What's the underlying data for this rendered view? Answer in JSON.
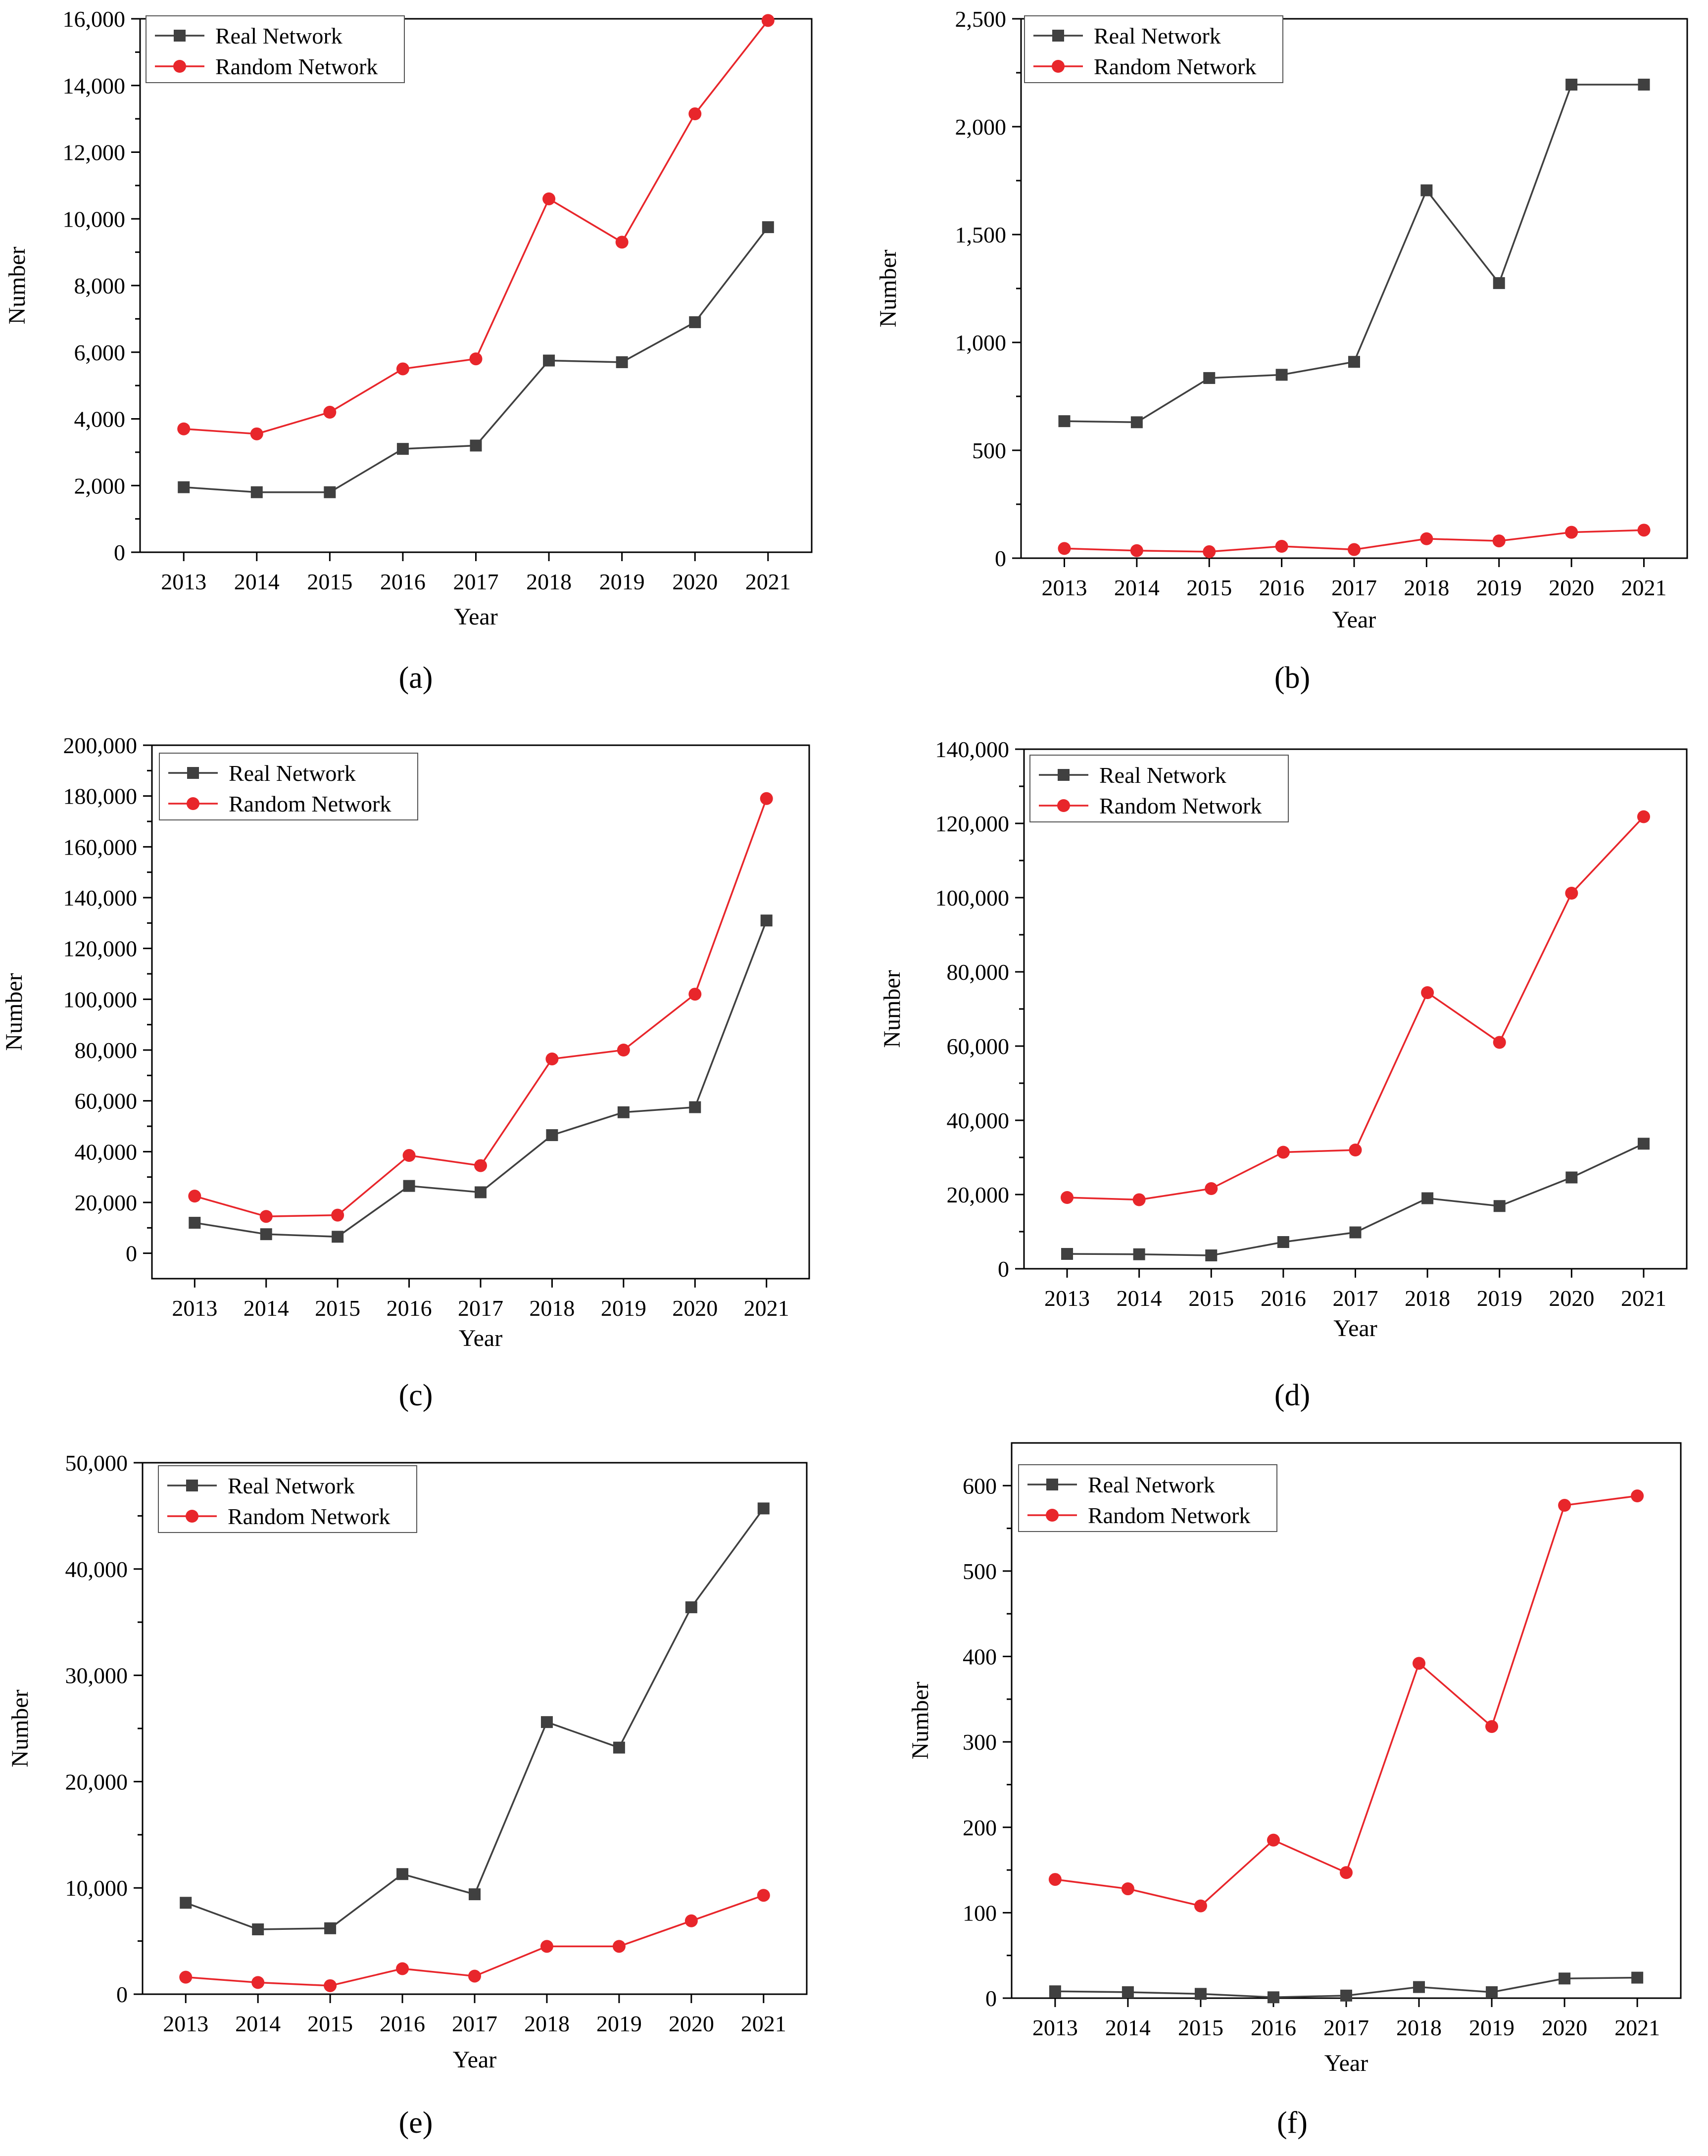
{
  "figure_label": "Six line charts comparing Real Network and Random Network counts by year",
  "colors": {
    "real": "#404040",
    "random": "#e8262b",
    "axis": "#000000"
  },
  "chart_data": [
    {
      "panel": "a",
      "type": "line",
      "xlabel": "Year",
      "ylabel": "Number",
      "categories": [
        "2013",
        "2014",
        "2015",
        "2016",
        "2017",
        "2018",
        "2019",
        "2020",
        "2021"
      ],
      "ylim": [
        0,
        16000
      ],
      "yticks": [
        0,
        2000,
        4000,
        6000,
        8000,
        10000,
        12000,
        14000,
        16000
      ],
      "ytick_labels": [
        "0",
        "2,000",
        "4,000",
        "6,000",
        "8,000",
        "10,000",
        "12,000",
        "14,000",
        "16,000"
      ],
      "legend": "top-left",
      "series": [
        {
          "name": "Real Network",
          "marker": "square",
          "values": [
            1950,
            1800,
            1800,
            3100,
            3200,
            5750,
            5700,
            6900,
            9750
          ]
        },
        {
          "name": "Random Network",
          "marker": "circle",
          "values": [
            3700,
            3550,
            4200,
            5500,
            5800,
            10600,
            9300,
            13150,
            15950
          ]
        }
      ]
    },
    {
      "panel": "b",
      "type": "line",
      "xlabel": "Year",
      "ylabel": "Number",
      "categories": [
        "2013",
        "2014",
        "2015",
        "2016",
        "2017",
        "2018",
        "2019",
        "2020",
        "2021"
      ],
      "ylim": [
        0,
        2500
      ],
      "yticks": [
        0,
        500,
        1000,
        1500,
        2000,
        2500
      ],
      "ytick_labels": [
        "0",
        "500",
        "1,000",
        "1,500",
        "2,000",
        "2,500"
      ],
      "legend": "top-left",
      "series": [
        {
          "name": "Real Network",
          "marker": "square",
          "values": [
            635,
            630,
            835,
            850,
            910,
            1705,
            1275,
            2195,
            2195
          ]
        },
        {
          "name": "Random Network",
          "marker": "circle",
          "values": [
            45,
            35,
            30,
            55,
            40,
            90,
            80,
            120,
            130
          ]
        }
      ]
    },
    {
      "panel": "c",
      "type": "line",
      "xlabel": "Year",
      "ylabel": "Number",
      "categories": [
        "2013",
        "2014",
        "2015",
        "2016",
        "2017",
        "2018",
        "2019",
        "2020",
        "2021"
      ],
      "ylim": [
        -10000,
        200000
      ],
      "yticks": [
        0,
        20000,
        40000,
        60000,
        80000,
        100000,
        120000,
        140000,
        160000,
        180000,
        200000
      ],
      "ytick_labels": [
        "0",
        "20,000",
        "40,000",
        "60,000",
        "80,000",
        "100,000",
        "120,000",
        "140,000",
        "160,000",
        "180,000",
        "200,000"
      ],
      "legend": "top-left",
      "series": [
        {
          "name": "Real Network",
          "marker": "square",
          "values": [
            12000,
            7500,
            6500,
            26500,
            24000,
            46500,
            55500,
            57500,
            131000
          ]
        },
        {
          "name": "Random Network",
          "marker": "circle",
          "values": [
            22500,
            14500,
            15000,
            38500,
            34500,
            76500,
            80000,
            102000,
            179000
          ]
        }
      ]
    },
    {
      "panel": "d",
      "type": "line",
      "xlabel": "Year",
      "ylabel": "Number",
      "categories": [
        "2013",
        "2014",
        "2015",
        "2016",
        "2017",
        "2018",
        "2019",
        "2020",
        "2021"
      ],
      "ylim": [
        0,
        140000
      ],
      "yticks": [
        0,
        20000,
        40000,
        60000,
        80000,
        100000,
        120000,
        140000
      ],
      "ytick_labels": [
        "0",
        "20,000",
        "40,000",
        "60,000",
        "80,000",
        "100,000",
        "120,000",
        "140,000"
      ],
      "legend": "top-left",
      "series": [
        {
          "name": "Real Network",
          "marker": "square",
          "values": [
            4000,
            3900,
            3600,
            7200,
            9800,
            19000,
            16900,
            24600,
            33700
          ]
        },
        {
          "name": "Random Network",
          "marker": "circle",
          "values": [
            19200,
            18600,
            21600,
            31400,
            32000,
            74400,
            61000,
            101200,
            121800
          ]
        }
      ]
    },
    {
      "panel": "e",
      "type": "line",
      "xlabel": "Year",
      "ylabel": "Number",
      "categories": [
        "2013",
        "2014",
        "2015",
        "2016",
        "2017",
        "2018",
        "2019",
        "2020",
        "2021"
      ],
      "ylim": [
        0,
        50000
      ],
      "yticks": [
        0,
        10000,
        20000,
        30000,
        40000,
        50000
      ],
      "ytick_labels": [
        "0",
        "10,000",
        "20,000",
        "30,000",
        "40,000",
        "50,000"
      ],
      "legend": "top-left",
      "series": [
        {
          "name": "Real Network",
          "marker": "square",
          "values": [
            8600,
            6100,
            6200,
            11300,
            9400,
            25600,
            23200,
            36400,
            45700
          ]
        },
        {
          "name": "Random Network",
          "marker": "circle",
          "values": [
            1600,
            1100,
            800,
            2400,
            1700,
            4500,
            4500,
            6900,
            9300
          ]
        }
      ]
    },
    {
      "panel": "f",
      "type": "line",
      "xlabel": "Year",
      "ylabel": "Number",
      "categories": [
        "2013",
        "2014",
        "2015",
        "2016",
        "2017",
        "2018",
        "2019",
        "2020",
        "2021"
      ],
      "ylim": [
        0,
        650
      ],
      "yticks": [
        0,
        100,
        200,
        300,
        400,
        500,
        600
      ],
      "ytick_labels": [
        "0",
        "100",
        "200",
        "300",
        "400",
        "500",
        "600"
      ],
      "legend": "top-left",
      "series": [
        {
          "name": "Real Network",
          "marker": "square",
          "values": [
            8,
            7,
            5,
            1,
            3,
            13,
            7,
            23,
            24
          ]
        },
        {
          "name": "Random Network",
          "marker": "circle",
          "values": [
            139,
            128,
            108,
            185,
            147,
            392,
            318,
            577,
            588
          ]
        }
      ]
    }
  ],
  "captions": [
    "(a)",
    "(b)",
    "(c)",
    "(d)",
    "(e)",
    "(f)"
  ]
}
